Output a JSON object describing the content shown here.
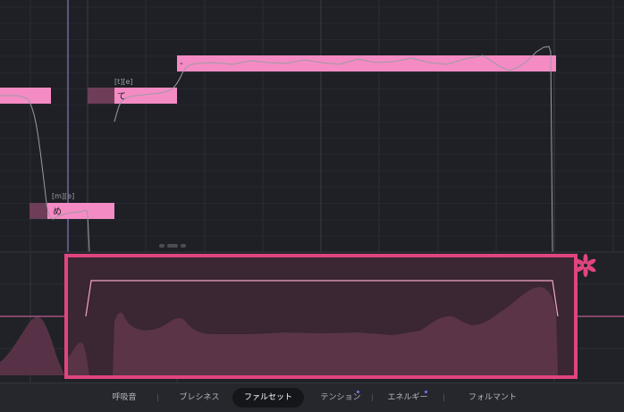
{
  "notes": [
    {
      "lyric": "",
      "phoneme": ""
    },
    {
      "lyric": "め",
      "phoneme": "[m][e]"
    },
    {
      "lyric": "て",
      "phoneme": "[t][e]"
    },
    {
      "lyric": "-",
      "phoneme": ""
    }
  ],
  "params_tabs": [
    {
      "label": "呼吸音",
      "active": false,
      "dot": false
    },
    {
      "label": "ブレシネス",
      "active": false,
      "dot": false
    },
    {
      "label": "ファルセット",
      "active": true,
      "dot": false
    },
    {
      "label": "テンション",
      "active": false,
      "dot": true
    },
    {
      "label": "エネルギー",
      "active": false,
      "dot": true
    },
    {
      "label": "フォルマント",
      "active": false,
      "dot": false
    }
  ],
  "icons": {
    "brand": "flower-icon",
    "drag_handle": "drag-handle-icon"
  },
  "colors": {
    "note": "#f58bc4",
    "note_inactive": "#6e3d57",
    "highlight_border": "#e0457f",
    "area_fill": "#5b3448",
    "active_tab_bg": "#14161a",
    "tab_dot": "#6c7cff"
  }
}
